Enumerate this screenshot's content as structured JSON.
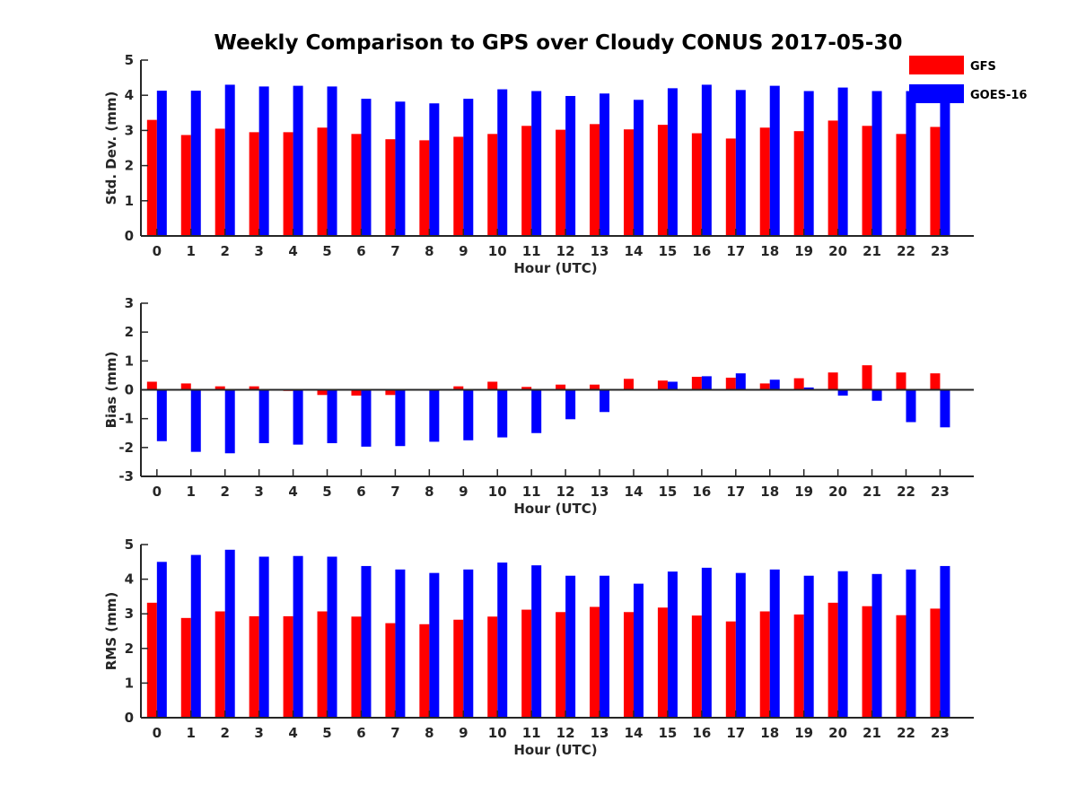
{
  "title": "Weekly Comparison to GPS over Cloudy CONUS 2017-05-30",
  "colors": {
    "GFS": "#ff0000",
    "GOES-16": "#0000ff",
    "axis": "#262626"
  },
  "chart_data": [
    {
      "type": "bar",
      "xlabel": "Hour (UTC)",
      "ylabel": "Std. Dev. (mm)",
      "ylim": [
        0,
        5
      ],
      "yticks": [
        "0",
        "1",
        "2",
        "3",
        "4",
        "5"
      ],
      "categories": [
        "0",
        "1",
        "2",
        "3",
        "4",
        "5",
        "6",
        "7",
        "8",
        "9",
        "10",
        "11",
        "12",
        "13",
        "14",
        "15",
        "16",
        "17",
        "18",
        "19",
        "20",
        "21",
        "22",
        "23"
      ],
      "legend": "top-right",
      "series": [
        {
          "name": "GFS",
          "values": [
            3.3,
            2.87,
            3.05,
            2.95,
            2.95,
            3.08,
            2.9,
            2.75,
            2.72,
            2.82,
            2.9,
            3.13,
            3.02,
            3.18,
            3.03,
            3.16,
            2.92,
            2.77,
            3.08,
            2.98,
            3.28,
            3.13,
            2.9,
            3.1
          ]
        },
        {
          "name": "GOES-16",
          "values": [
            4.13,
            4.13,
            4.3,
            4.25,
            4.27,
            4.25,
            3.9,
            3.82,
            3.77,
            3.9,
            4.17,
            4.12,
            3.98,
            4.05,
            3.87,
            4.2,
            4.3,
            4.15,
            4.27,
            4.12,
            4.22,
            4.12,
            4.12,
            4.12
          ]
        }
      ]
    },
    {
      "type": "bar",
      "xlabel": "Hour (UTC)",
      "ylabel": "Bias (mm)",
      "ylim": [
        -3,
        3
      ],
      "yticks": [
        "-3",
        "-2",
        "-1",
        "0",
        "1",
        "2",
        "3"
      ],
      "categories": [
        "0",
        "1",
        "2",
        "3",
        "4",
        "5",
        "6",
        "7",
        "8",
        "9",
        "10",
        "11",
        "12",
        "13",
        "14",
        "15",
        "16",
        "17",
        "18",
        "19",
        "20",
        "21",
        "22",
        "23"
      ],
      "series": [
        {
          "name": "GFS",
          "values": [
            0.28,
            0.22,
            0.12,
            0.12,
            -0.04,
            -0.18,
            -0.2,
            -0.18,
            -0.02,
            0.12,
            0.28,
            0.1,
            0.18,
            0.18,
            0.38,
            0.32,
            0.45,
            0.42,
            0.22,
            0.4,
            0.6,
            0.85,
            0.6,
            0.57
          ]
        },
        {
          "name": "GOES-16",
          "values": [
            -1.78,
            -2.15,
            -2.2,
            -1.85,
            -1.9,
            -1.85,
            -1.97,
            -1.95,
            -1.8,
            -1.75,
            -1.65,
            -1.5,
            -1.02,
            -0.77,
            0.0,
            0.28,
            0.47,
            0.57,
            0.35,
            0.08,
            -0.2,
            -0.38,
            -1.12,
            -1.3
          ]
        }
      ]
    },
    {
      "type": "bar",
      "xlabel": "Hour (UTC)",
      "ylabel": "RMS (mm)",
      "ylim": [
        0,
        5
      ],
      "yticks": [
        "0",
        "1",
        "2",
        "3",
        "4",
        "5"
      ],
      "categories": [
        "0",
        "1",
        "2",
        "3",
        "4",
        "5",
        "6",
        "7",
        "8",
        "9",
        "10",
        "11",
        "12",
        "13",
        "14",
        "15",
        "16",
        "17",
        "18",
        "19",
        "20",
        "21",
        "22",
        "23"
      ],
      "series": [
        {
          "name": "GFS",
          "values": [
            3.32,
            2.88,
            3.07,
            2.93,
            2.93,
            3.07,
            2.92,
            2.73,
            2.7,
            2.83,
            2.92,
            3.12,
            3.05,
            3.2,
            3.05,
            3.18,
            2.95,
            2.78,
            3.07,
            2.98,
            3.32,
            3.22,
            2.96,
            3.15
          ]
        },
        {
          "name": "GOES-16",
          "values": [
            4.5,
            4.7,
            4.85,
            4.65,
            4.67,
            4.65,
            4.38,
            4.28,
            4.18,
            4.28,
            4.48,
            4.4,
            4.1,
            4.1,
            3.87,
            4.22,
            4.33,
            4.18,
            4.28,
            4.1,
            4.23,
            4.15,
            4.28,
            4.38
          ]
        }
      ]
    }
  ]
}
